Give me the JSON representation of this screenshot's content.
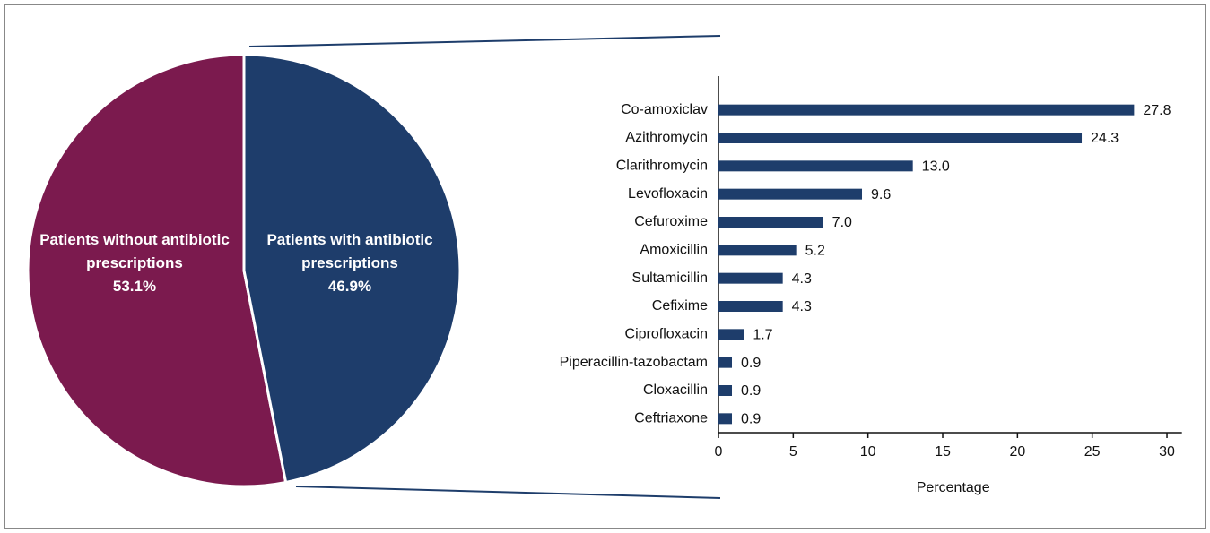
{
  "chart_data": [
    {
      "type": "pie",
      "categories": [
        "Patients without antibiotic prescriptions",
        "Patients with antibiotic prescriptions"
      ],
      "values": [
        53.1,
        46.9
      ],
      "value_labels": [
        "53.1%",
        "46.9%"
      ],
      "colors": [
        "#7b1a4e",
        "#1e3d6b"
      ]
    },
    {
      "type": "hbar",
      "categories": [
        "Co-amoxiclav",
        "Azithromycin",
        "Clarithromycin",
        "Levofloxacin",
        "Cefuroxime",
        "Amoxicillin",
        "Sultamicillin",
        "Cefixime",
        "Ciprofloxacin",
        "Piperacillin-tazobactam",
        "Cloxacillin",
        "Ceftriaxone"
      ],
      "values": [
        27.8,
        24.3,
        13.0,
        9.6,
        7.0,
        5.2,
        4.3,
        4.3,
        1.7,
        0.9,
        0.9,
        0.9
      ],
      "value_labels": [
        "27.8",
        "24.3",
        "13.0",
        "9.6",
        "7.0",
        "5.2",
        "4.3",
        "4.3",
        "1.7",
        "0.9",
        "0.9",
        "0.9"
      ],
      "color": "#1e3d6b",
      "xlabel": "Percentage",
      "xlim": [
        0,
        31
      ],
      "xticks": [
        0,
        5,
        10,
        15,
        20,
        25,
        30
      ]
    }
  ]
}
